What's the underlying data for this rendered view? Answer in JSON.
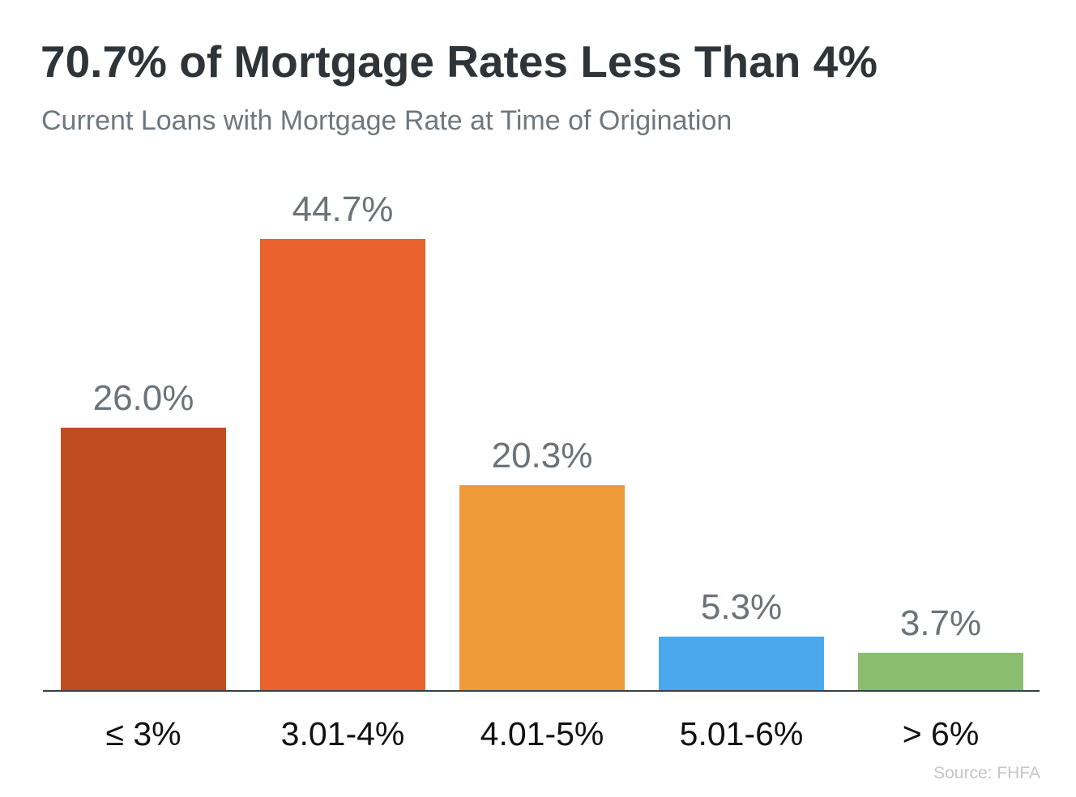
{
  "chart_data": {
    "type": "bar",
    "title": "70.7% of Mortgage Rates Less Than 4%",
    "subtitle": "Current Loans with Mortgage Rate at Time of Origination",
    "categories": [
      "≤ 3%",
      "3.01-4%",
      "4.01-5%",
      "5.01-6%",
      "> 6%"
    ],
    "values": [
      26.0,
      44.7,
      20.3,
      5.3,
      3.7
    ],
    "value_labels": [
      "26.0%",
      "44.7%",
      "20.3%",
      "5.3%",
      "3.7%"
    ],
    "colors": [
      "#C04C21",
      "#EA622C",
      "#EF9A38",
      "#4BA8EC",
      "#8BBD6E"
    ],
    "xlabel": "",
    "ylabel": "",
    "grid": false,
    "source": "Source: FHFA"
  }
}
